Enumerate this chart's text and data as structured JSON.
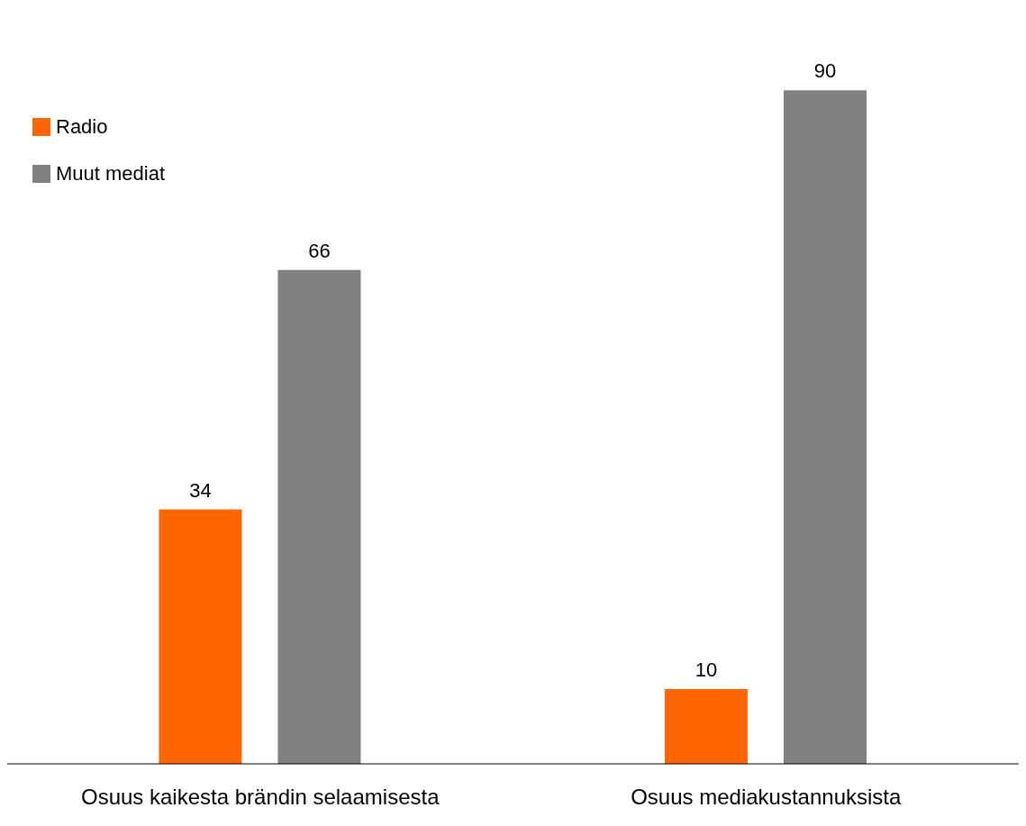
{
  "chart_data": {
    "type": "bar",
    "categories": [
      "Osuus kaikesta brändin selaamisesta",
      "Osuus mediakustannuksista"
    ],
    "series": [
      {
        "name": "Radio",
        "color": "#ff6600",
        "values": [
          34,
          10
        ]
      },
      {
        "name": "Muut mediat",
        "color": "#808080",
        "values": [
          66,
          90
        ]
      }
    ],
    "data_labels": true,
    "legend": "top left",
    "grid": false
  }
}
